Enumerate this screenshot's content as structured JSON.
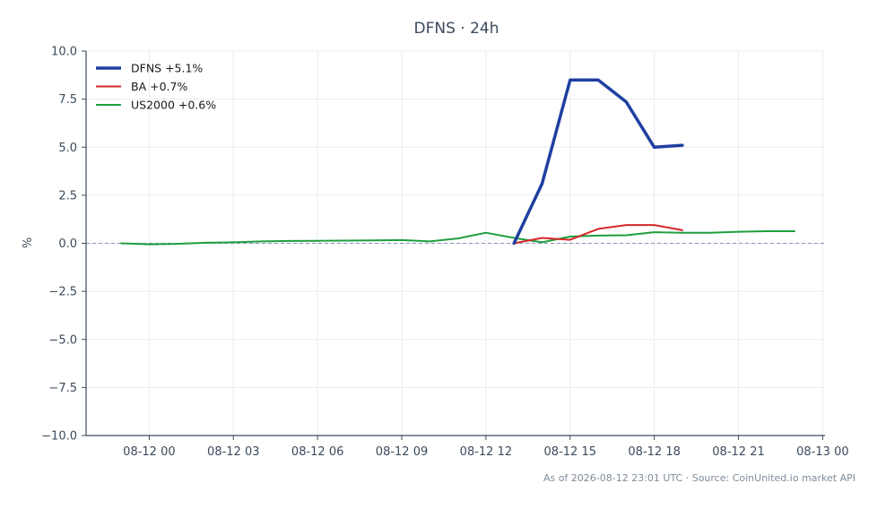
{
  "chart_data": {
    "type": "line",
    "title": "DFNS · 24h",
    "ylabel": "%",
    "xlabel": "",
    "ylim": [
      -10,
      10
    ],
    "yticks": [
      10.0,
      7.5,
      5.0,
      2.5,
      0.0,
      -2.5,
      -5.0,
      -7.5,
      -10.0
    ],
    "ytick_labels": [
      "10.0",
      "7.5",
      "5.0",
      "2.5",
      "0.0",
      "−2.5",
      "−5.0",
      "−7.5",
      "−10.0"
    ],
    "xlim": [
      "08-11 21:45",
      "08-13 00:05"
    ],
    "xticks": [
      "08-12 00:00",
      "08-12 03:00",
      "08-12 06:00",
      "08-12 09:00",
      "08-12 12:00",
      "08-12 15:00",
      "08-12 18:00",
      "08-12 21:00",
      "08-13 00:00"
    ],
    "xtick_labels": [
      "08-12 00",
      "08-12 03",
      "08-12 06",
      "08-12 09",
      "08-12 12",
      "08-12 15",
      "08-12 18",
      "08-12 21",
      "08-13 00"
    ],
    "baseline": 0,
    "grid": true,
    "legend_position": "top-left",
    "series": [
      {
        "name": "DFNS +5.1%",
        "color": "#1f3fa0",
        "x": [
          "08-12 13:00",
          "08-12 14:00",
          "08-12 15:00",
          "08-12 16:00",
          "08-12 17:00",
          "08-12 18:00",
          "08-12 19:00"
        ],
        "values": [
          0.0,
          3.1,
          8.5,
          8.5,
          7.35,
          5.0,
          5.1
        ]
      },
      {
        "name": "BA +0.7%",
        "color": "#d62728",
        "x": [
          "08-12 13:00",
          "08-12 14:00",
          "08-12 15:00",
          "08-12 16:00",
          "08-12 17:00",
          "08-12 18:00",
          "08-12 19:00"
        ],
        "values": [
          0.0,
          0.28,
          0.18,
          0.75,
          0.95,
          0.95,
          0.68
        ]
      },
      {
        "name": "US2000 +0.6%",
        "color": "#1f9e3f",
        "x": [
          "08-11 23:00",
          "08-12 00:00",
          "08-12 01:00",
          "08-12 02:00",
          "08-12 03:00",
          "08-12 04:00",
          "08-12 05:00",
          "08-12 06:00",
          "08-12 07:00",
          "08-12 08:00",
          "08-12 09:00",
          "08-12 10:00",
          "08-12 11:00",
          "08-12 12:00",
          "08-12 13:00",
          "08-12 14:00",
          "08-12 15:00",
          "08-12 16:00",
          "08-12 17:00",
          "08-12 18:00",
          "08-12 19:00",
          "08-12 20:00",
          "08-12 21:00",
          "08-12 22:00",
          "08-12 23:00"
        ],
        "values": [
          0.0,
          -0.05,
          -0.03,
          0.03,
          0.05,
          0.1,
          0.12,
          0.13,
          0.14,
          0.15,
          0.17,
          0.1,
          0.25,
          0.55,
          0.28,
          0.05,
          0.35,
          0.4,
          0.42,
          0.58,
          0.55,
          0.55,
          0.6,
          0.63,
          0.63
        ]
      }
    ],
    "footer": "As of 2026-08-12 23:01 UTC · Source: CoinUnited.io market API"
  }
}
